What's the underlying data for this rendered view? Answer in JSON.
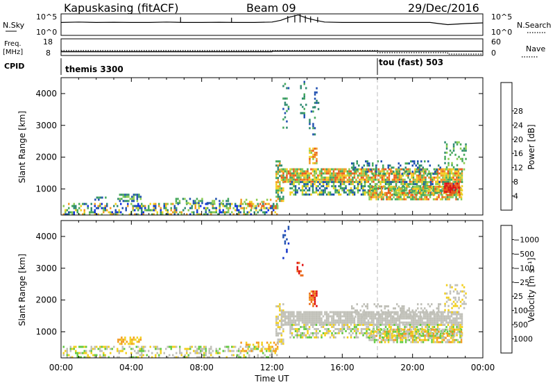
{
  "header": {
    "station": "Kapuskasing (fitACF)",
    "beam": "Beam 09",
    "date": "29/Dec/2016"
  },
  "chart_data": [
    {
      "type": "line",
      "title": "",
      "ylabel_left": "N.Sky",
      "ylabel_right": "N.Search",
      "left_ticks": [
        "10^5",
        "10^0"
      ],
      "right_ticks": [
        "10^5",
        "10^0"
      ],
      "series": [
        {
          "name": "N.Sky",
          "style": "solid",
          "x": [
            0,
            1,
            2,
            3,
            4,
            5,
            6,
            7,
            8,
            9,
            10,
            11,
            12,
            12.5,
            13,
            13.5,
            14,
            14.5,
            15,
            16,
            17,
            18,
            19,
            20,
            21,
            21.5,
            22,
            23,
            24
          ],
          "y": [
            0.6,
            0.62,
            0.6,
            0.61,
            0.6,
            0.6,
            0.62,
            0.6,
            0.6,
            0.61,
            0.6,
            0.6,
            0.62,
            0.7,
            0.85,
            0.95,
            0.8,
            0.7,
            0.62,
            0.6,
            0.6,
            0.6,
            0.6,
            0.6,
            0.6,
            0.55,
            0.5,
            0.55,
            0.58
          ]
        }
      ]
    },
    {
      "type": "line",
      "ylabel_left": "Freq. [MHz]",
      "ylabel_right": "Nave",
      "left_ticks": [
        "18",
        "8"
      ],
      "right_ticks": [
        "60",
        "0"
      ],
      "series": [
        {
          "name": "Freq",
          "style": "solid",
          "x": [
            0,
            12,
            12.01,
            24
          ],
          "y": [
            10.3,
            10.3,
            10.6,
            10.6
          ]
        },
        {
          "name": "Nave",
          "style": "dotted",
          "x": [
            0,
            18,
            18.01,
            22,
            22.01,
            24
          ],
          "y": [
            18,
            18,
            10,
            10,
            5,
            5
          ]
        }
      ]
    },
    {
      "type": "table",
      "label": "CPID",
      "segments": [
        {
          "start": 0,
          "end": 18,
          "name": "themis 3300"
        },
        {
          "start": 18,
          "end": 24,
          "name": "tou (fast) 503"
        }
      ]
    },
    {
      "type": "heatmap",
      "ylabel": "Slant Range [km]",
      "ylim": [
        180,
        4500
      ],
      "yticks": [
        1000,
        2000,
        3000,
        4000
      ],
      "xlim": [
        0,
        24
      ],
      "colorbar": {
        "label": "Power [dB]",
        "ticks": [
          "4",
          "8",
          "12",
          "16",
          "20",
          "24",
          "28"
        ],
        "colors": [
          "#1030e0",
          "#2050b0",
          "#2e8a70",
          "#44a85a",
          "#8ccc50",
          "#f2d020",
          "#f29a20",
          "#ea5a1a",
          "#e01010"
        ]
      },
      "regions": [
        {
          "x0": 0.1,
          "x1": 12.3,
          "y0": 200,
          "y1": 560,
          "density": 0.45,
          "palette": [
            0,
            1,
            2,
            3,
            4,
            5,
            6
          ]
        },
        {
          "x0": 3.2,
          "x1": 4.5,
          "y0": 650,
          "y1": 850,
          "density": 0.6,
          "palette": [
            1,
            2,
            3,
            4
          ]
        },
        {
          "x0": 1.9,
          "x1": 2.5,
          "y0": 650,
          "y1": 760,
          "density": 0.5,
          "palette": [
            1,
            2,
            3
          ]
        },
        {
          "x0": 6.5,
          "x1": 9.5,
          "y0": 560,
          "y1": 720,
          "density": 0.35,
          "palette": [
            1,
            2,
            3,
            4
          ]
        },
        {
          "x0": 10.2,
          "x1": 12.3,
          "y0": 420,
          "y1": 690,
          "density": 0.4,
          "palette": [
            4,
            5,
            6,
            7
          ]
        },
        {
          "x0": 12.2,
          "x1": 12.6,
          "y0": 650,
          "y1": 1900,
          "density": 0.55,
          "palette": [
            2,
            3,
            4,
            5,
            6
          ]
        },
        {
          "x0": 12.5,
          "x1": 22.8,
          "y0": 1250,
          "y1": 1650,
          "density": 0.8,
          "palette": [
            3,
            4,
            5,
            6,
            7
          ]
        },
        {
          "x0": 13.0,
          "x1": 22.8,
          "y0": 850,
          "y1": 1250,
          "density": 0.6,
          "palette": [
            1,
            2,
            3,
            4,
            5
          ]
        },
        {
          "x0": 17.5,
          "x1": 22.8,
          "y0": 700,
          "y1": 1100,
          "density": 0.7,
          "palette": [
            3,
            4,
            5,
            6,
            7
          ]
        },
        {
          "x0": 21.8,
          "x1": 22.6,
          "y0": 900,
          "y1": 1200,
          "density": 0.9,
          "palette": [
            7,
            8
          ]
        },
        {
          "x0": 14.1,
          "x1": 14.5,
          "y0": 1800,
          "y1": 2300,
          "density": 0.6,
          "palette": [
            4,
            5,
            6,
            7
          ]
        },
        {
          "x0": 12.6,
          "x1": 12.9,
          "y0": 2900,
          "y1": 4400,
          "density": 0.2,
          "palette": [
            1,
            2,
            3
          ]
        },
        {
          "x0": 13.6,
          "x1": 13.9,
          "y0": 3200,
          "y1": 4400,
          "density": 0.2,
          "palette": [
            1,
            2,
            3
          ]
        },
        {
          "x0": 14.1,
          "x1": 14.4,
          "y0": 2700,
          "y1": 3600,
          "density": 0.25,
          "palette": [
            1,
            2,
            3
          ]
        },
        {
          "x0": 14.3,
          "x1": 14.6,
          "y0": 3500,
          "y1": 4200,
          "density": 0.25,
          "palette": [
            1,
            2
          ]
        },
        {
          "x0": 16.5,
          "x1": 21.6,
          "y0": 1500,
          "y1": 1900,
          "density": 0.25,
          "palette": [
            1,
            2,
            3
          ]
        },
        {
          "x0": 21.8,
          "x1": 23.0,
          "y0": 1600,
          "y1": 2500,
          "density": 0.3,
          "palette": [
            2,
            3,
            4
          ]
        }
      ]
    },
    {
      "type": "heatmap",
      "ylabel": "Slant Range [km]",
      "xlabel": "Time UT",
      "ylim": [
        180,
        4500
      ],
      "yticks": [
        1000,
        2000,
        3000,
        4000
      ],
      "xlim": [
        0,
        24
      ],
      "xticks": [
        "00:00",
        "04:00",
        "08:00",
        "12:00",
        "16:00",
        "20:00",
        "00:00"
      ],
      "colorbar": {
        "label": "Velocity [m s⁻¹]",
        "ticks": [
          "1000",
          "500",
          "100",
          "25",
          "−25",
          "−100",
          "−500",
          "−1000"
        ],
        "colors": [
          "#1030c8",
          "#2050b0",
          "#2e8a70",
          "#66cc44",
          "#c0c0b8",
          "#f2d020",
          "#f29a20",
          "#ea6a1a",
          "#e01010"
        ]
      },
      "regions": [
        {
          "x0": 0.1,
          "x1": 12.3,
          "y0": 200,
          "y1": 560,
          "density": 0.35,
          "palette": [
            3,
            4,
            4,
            5
          ]
        },
        {
          "x0": 3.2,
          "x1": 4.5,
          "y0": 650,
          "y1": 850,
          "density": 0.6,
          "palette": [
            5,
            6
          ]
        },
        {
          "x0": 10.2,
          "x1": 12.3,
          "y0": 420,
          "y1": 690,
          "density": 0.35,
          "palette": [
            5,
            6
          ]
        },
        {
          "x0": 12.2,
          "x1": 12.6,
          "y0": 650,
          "y1": 1900,
          "density": 0.55,
          "palette": [
            4,
            4,
            5
          ]
        },
        {
          "x0": 12.5,
          "x1": 22.8,
          "y0": 1250,
          "y1": 1650,
          "density": 0.85,
          "palette": [
            4
          ]
        },
        {
          "x0": 13.0,
          "x1": 22.8,
          "y0": 850,
          "y1": 1250,
          "density": 0.55,
          "palette": [
            4,
            4,
            5,
            3
          ]
        },
        {
          "x0": 17.5,
          "x1": 22.8,
          "y0": 700,
          "y1": 1100,
          "density": 0.7,
          "palette": [
            3,
            4,
            5,
            6
          ]
        },
        {
          "x0": 14.1,
          "x1": 14.5,
          "y0": 1800,
          "y1": 2300,
          "density": 0.7,
          "palette": [
            6,
            7,
            8
          ]
        },
        {
          "x0": 13.4,
          "x1": 13.7,
          "y0": 2700,
          "y1": 3200,
          "density": 0.35,
          "palette": [
            7,
            8
          ]
        },
        {
          "x0": 12.6,
          "x1": 12.9,
          "y0": 3300,
          "y1": 4400,
          "density": 0.2,
          "palette": [
            0,
            1
          ]
        },
        {
          "x0": 16.5,
          "x1": 21.6,
          "y0": 1500,
          "y1": 1900,
          "density": 0.25,
          "palette": [
            4
          ]
        },
        {
          "x0": 21.8,
          "x1": 23.0,
          "y0": 1600,
          "y1": 2500,
          "density": 0.3,
          "palette": [
            4,
            5
          ]
        }
      ]
    }
  ]
}
